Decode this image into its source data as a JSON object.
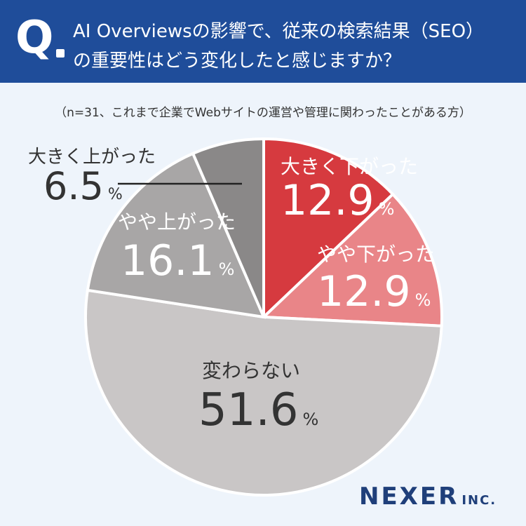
{
  "header": {
    "q_letter": "Q",
    "question_line1": "AI Overviewsの影響で、従来の検索結果（SEO）",
    "question_line2": "の重要性はどう変化したと感じますか？"
  },
  "note": "（n=31、これまで企業でWebサイトの運営や管理に関わったことがある方）",
  "brand": {
    "name": "NEXER",
    "suffix": "INC."
  },
  "colors": {
    "header_bg": "#1f4d9a",
    "background": "#eef4fb",
    "slice_big_down": "#d63a3f",
    "slice_down": "#e98588",
    "slice_same": "#c9c6c6",
    "slice_up": "#a8a6a6",
    "slice_big_up": "#8a8888",
    "leader_line": "#222222"
  },
  "chart_data": {
    "type": "pie",
    "unit": "%",
    "slices": [
      {
        "label": "大きく下がった",
        "value": 12.9,
        "value_text": "12.9"
      },
      {
        "label": "やや下がった",
        "value": 12.9,
        "value_text": "12.9"
      },
      {
        "label": "変わらない",
        "value": 51.6,
        "value_text": "51.6"
      },
      {
        "label": "やや上がった",
        "value": 16.1,
        "value_text": "16.1"
      },
      {
        "label": "大きく上がった",
        "value": 6.5,
        "value_text": "6.5"
      }
    ]
  }
}
